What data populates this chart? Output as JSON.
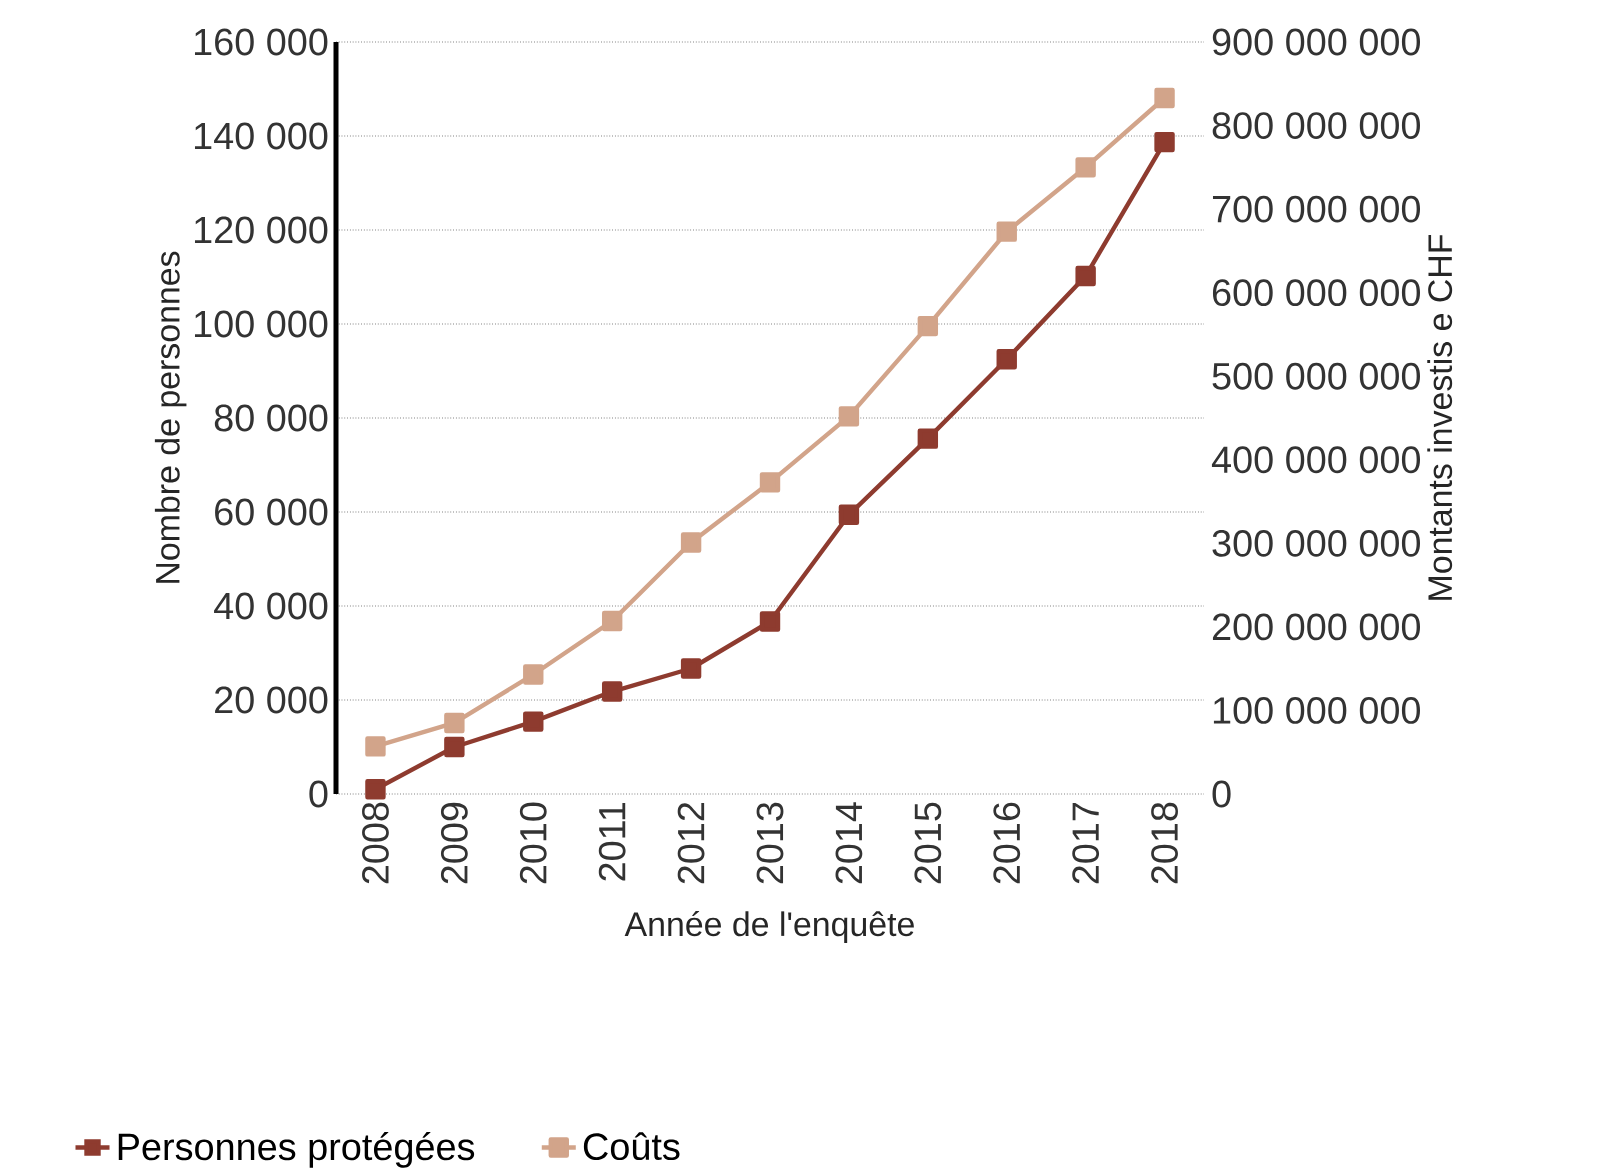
{
  "chart_data": {
    "type": "line",
    "xlabel": "Année de l'enquête",
    "ylabel": "Nombre de personnes",
    "y2label": "Montants investis e CHF",
    "categories": [
      "2008",
      "2009",
      "2010",
      "2011",
      "2012",
      "2013",
      "2014",
      "2015",
      "2016",
      "2017",
      "2018"
    ],
    "series": [
      {
        "name": "Personnes protégées",
        "color": "#8e3b2f",
        "values": [
          1000,
          10000,
          15400,
          21800,
          26700,
          36700,
          59400,
          75600,
          92500,
          110200,
          138700
        ]
      },
      {
        "name": "Coûts",
        "color": "#d2a48a",
        "axis": "y2",
        "values": [
          57000000,
          85000000,
          143000000,
          207000000,
          301000000,
          373000000,
          452000000,
          560000000,
          673000000,
          750000000,
          833000000
        ]
      }
    ],
    "ylim": [
      0,
      160000
    ],
    "yticks": [
      0,
      {
        "value": 20000,
        "label": "20 000"
      },
      {
        "value": 40000,
        "label": "40 000"
      },
      {
        "value": 60000,
        "label": "60 000"
      },
      {
        "value": 80000,
        "label": "80 000"
      },
      {
        "value": 100000,
        "label": "100 000"
      },
      {
        "value": 120000,
        "label": "120 000"
      },
      {
        "value": 140000,
        "label": "140 000"
      },
      {
        "value": 160000,
        "label": "160 000"
      }
    ],
    "y2lim": [
      0,
      900000000
    ],
    "y2ticks": [
      0,
      {
        "value": 100000000,
        "label": "100 000 000"
      },
      {
        "value": 200000000,
        "label": "200 000 000"
      },
      {
        "value": 300000000,
        "label": "300 000 000"
      },
      {
        "value": 400000000,
        "label": "400 000 000"
      },
      {
        "value": 500000000,
        "label": "500 000 000"
      },
      {
        "value": 600000000,
        "label": "600 000 000"
      },
      {
        "value": 700000000,
        "label": "700 000 000"
      },
      {
        "value": 800000000,
        "label": "800 000 000"
      },
      {
        "value": 900000000,
        "label": "900 000 000"
      }
    ],
    "grid": "y",
    "legend": "bottom",
    "marker": "square",
    "line_style": "solid"
  }
}
